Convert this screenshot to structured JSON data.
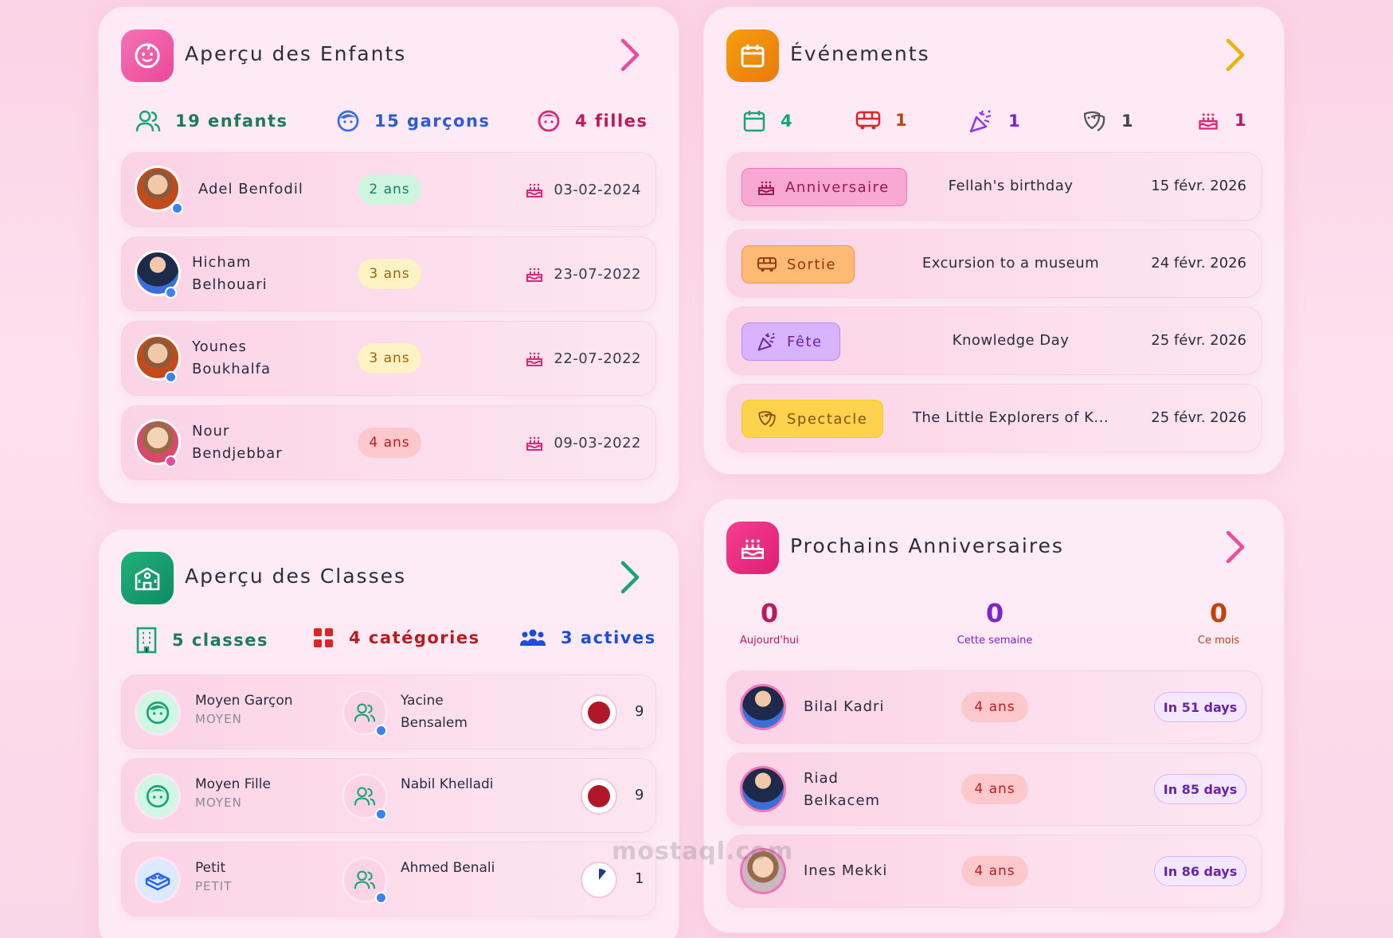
{
  "children_card": {
    "title": "Aperçu des Enfants",
    "stats": {
      "total": "19 enfants",
      "boys": "15 garçons",
      "girls": "4 filles"
    },
    "rows": [
      {
        "name": "Adel Benfodil",
        "age": "2 ans",
        "date": "03-02-2024"
      },
      {
        "name": "Hicham Belhouari",
        "age": "3 ans",
        "date": "23-07-2022"
      },
      {
        "name": "Younes Boukhalfa",
        "age": "3 ans",
        "date": "22-07-2022"
      },
      {
        "name": "Nour Bendjebbar",
        "age": "4 ans",
        "date": "09-03-2022"
      }
    ]
  },
  "events_card": {
    "title": "Événements",
    "counts": {
      "calendar": "4",
      "bus": "1",
      "party": "1",
      "mask": "1",
      "cake": "1"
    },
    "rows": [
      {
        "type": "Anniversaire",
        "title": "Fellah's birthday",
        "date": "15 févr. 2026"
      },
      {
        "type": "Sortie",
        "title": "Excursion to a museum",
        "date": "24 févr. 2026"
      },
      {
        "type": "Fête",
        "title": "Knowledge Day",
        "date": "25 févr. 2026"
      },
      {
        "type": "Spectacle",
        "title": "The Little Explorers of K...",
        "date": "25 févr. 2026"
      }
    ]
  },
  "classes_card": {
    "title": "Aperçu des Classes",
    "stats": {
      "classes": "5 classes",
      "categories": "4 catégories",
      "active": "3 actives"
    },
    "rows": [
      {
        "name": "Moyen Garçon",
        "level": "MOYEN",
        "teacher": "Yacine Bensalem",
        "count": "9",
        "fill_fraction": 1.0
      },
      {
        "name": "Moyen Fille",
        "level": "MOYEN",
        "teacher": "Nabil Khelladi",
        "count": "9",
        "fill_fraction": 1.0
      },
      {
        "name": "Petit",
        "level": "PETIT",
        "teacher": "Ahmed Benali",
        "count": "1",
        "fill_fraction": 0.11
      }
    ]
  },
  "birthdays_card": {
    "title": "Prochains Anniversaires",
    "counters": [
      {
        "value": "0",
        "label": "Aujourd'hui"
      },
      {
        "value": "0",
        "label": "Cette semaine"
      },
      {
        "value": "0",
        "label": "Ce mois"
      }
    ],
    "rows": [
      {
        "name": "Bilal Kadri",
        "age": "4 ans",
        "when": "In 51 days"
      },
      {
        "name": "Riad Belkacem",
        "age": "4 ans",
        "when": "In 85 days"
      },
      {
        "name": "Ines Mekki",
        "age": "4 ans",
        "when": "In 86 days"
      }
    ]
  },
  "watermark": "mostaql.com",
  "colors": {
    "pink": "#ec4c9c",
    "orange": "#f08a12",
    "green": "#17a578",
    "red_dark": "#b0182a",
    "blue": "#3b6fe0",
    "purple": "#7e22ce"
  }
}
